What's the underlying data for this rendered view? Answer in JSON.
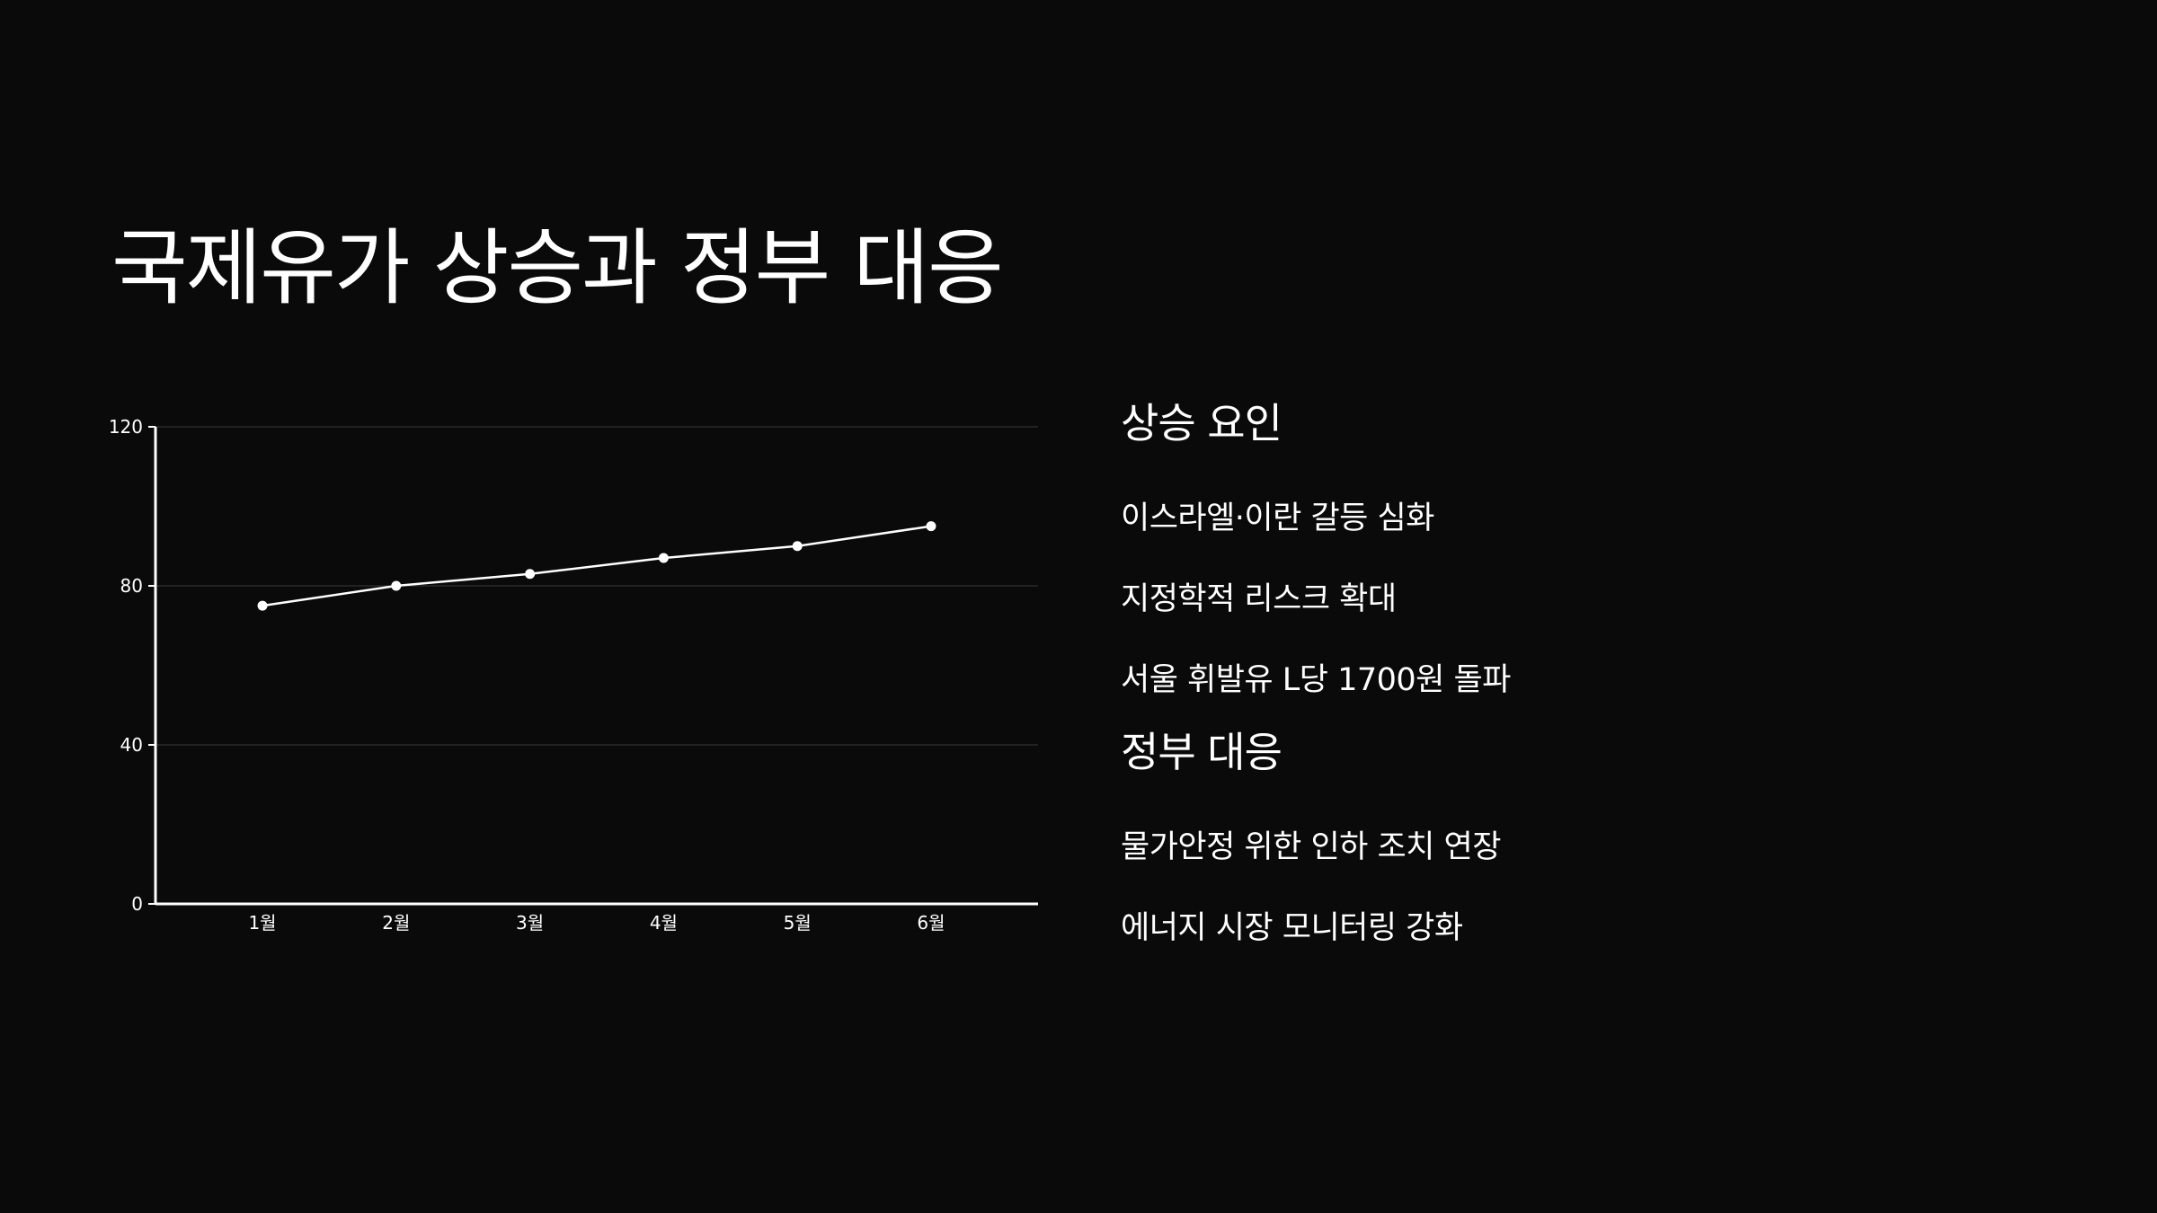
{
  "title": "국제유가 상승과 정부 대응",
  "sections": [
    {
      "heading": "상승 요인",
      "items": [
        "이스라엘·이란 갈등 심화",
        "지정학적 리스크 확대",
        "서울 휘발유 L당 1700원 돌파"
      ]
    },
    {
      "heading": "정부 대응",
      "items": [
        "물가안정 위한 인하 조치 연장",
        "에너지 시장 모니터링 강화"
      ]
    }
  ],
  "colors": {
    "background": "#0a0a0a",
    "text": "#ffffff",
    "gridline": "#3a3a3a",
    "line": "#ffffff"
  },
  "chart_data": {
    "type": "line",
    "categories": [
      "1월",
      "2월",
      "3월",
      "4월",
      "5월",
      "6월"
    ],
    "series": [
      {
        "values": [
          75,
          80,
          83,
          87,
          90,
          95
        ]
      }
    ],
    "yticks": [
      0,
      40,
      80,
      120
    ],
    "ylim": [
      0,
      120
    ],
    "grid": true,
    "legend": "none",
    "title": "",
    "xlabel": "",
    "ylabel": ""
  }
}
